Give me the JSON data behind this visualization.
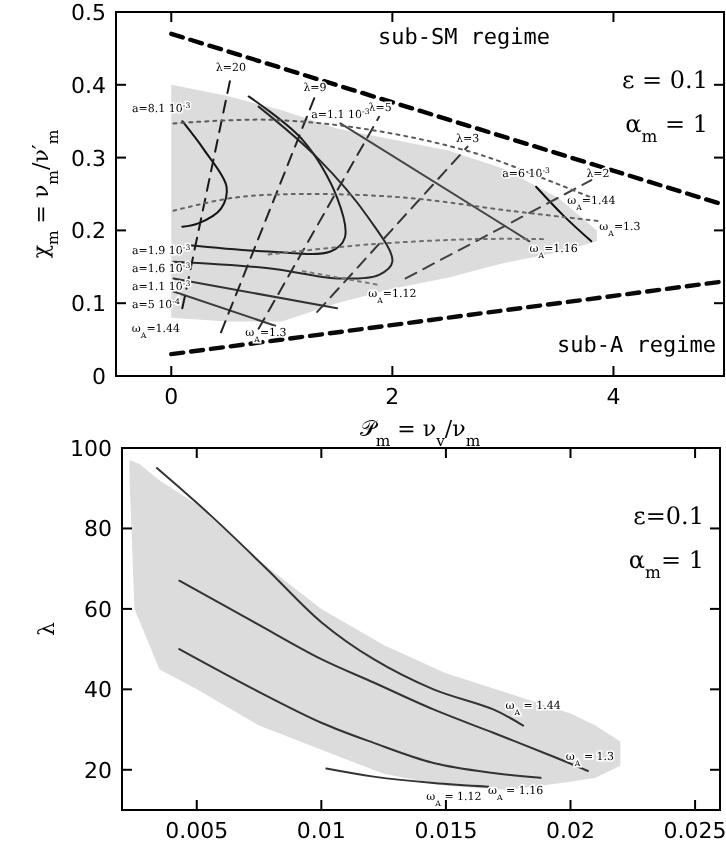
{
  "chart_data": [
    {
      "type": "line",
      "xlabel": "𝒫$_{m}$ = ν$_{v}$/ν$_{m}$",
      "ylabel": "χ$_{m}$ = ν$_{m}$/ν′$_{m}$",
      "xlim": [
        -0.5,
        5
      ],
      "ylim": [
        0,
        0.5
      ],
      "xticks": [
        0,
        2,
        4
      ],
      "yticks": [
        0,
        0.1,
        0.2,
        0.3,
        0.4,
        0.5
      ],
      "series": [
        {
          "type": "area",
          "color": "#dcdcdc",
          "x": [
            0,
            0.5,
            1,
            1.5,
            2,
            2.5,
            3,
            3.5,
            3.85,
            3.85,
            3.5,
            3,
            2.5,
            2,
            1.5,
            1,
            0.5,
            0
          ],
          "values": [
            0.4,
            0.385,
            0.365,
            0.34,
            0.325,
            0.31,
            0.285,
            0.245,
            0.2,
            0.185,
            0.17,
            0.155,
            0.135,
            0.12,
            0.1,
            0.075,
            0.075,
            0.08
          ]
        },
        {
          "line_style": "dashed",
          "color": "#000000",
          "x": [
            0,
            5
          ],
          "values": [
            0.47,
            0.235
          ]
        },
        {
          "line_style": "dashed",
          "color": "#0a0a0a",
          "x": [
            0,
            5
          ],
          "values": [
            0.03,
            0.13
          ]
        },
        {
          "line_style": "solid",
          "color": "#141414",
          "x": [
            0.1,
            0.3,
            0.5,
            0.45,
            0.25,
            0.1
          ],
          "values": [
            0.35,
            0.31,
            0.26,
            0.23,
            0.21,
            0.205
          ]
        },
        {
          "line_style": "solid",
          "color": "#1e1e1e",
          "x": [
            0.7,
            1.19,
            1.5,
            1.57,
            1.44,
            0.88,
            0.14
          ],
          "values": [
            0.384,
            0.324,
            0.245,
            0.19,
            0.171,
            0.171,
            0.18
          ]
        },
        {
          "line_style": "solid",
          "color": "#282828",
          "x": [
            0.79,
            1.32,
            1.78,
            2.0,
            1.88,
            1.5,
            0.88,
            0.02
          ],
          "values": [
            0.37,
            0.3,
            0.218,
            0.157,
            0.139,
            0.134,
            0.148,
            0.157
          ]
        },
        {
          "line_style": "solid",
          "color": "#323232",
          "x": [
            0.02,
            1.5
          ],
          "values": [
            0.134,
            0.093
          ]
        },
        {
          "line_style": "solid",
          "color": "#3c3c3c",
          "x": [
            0.02,
            0.94
          ],
          "values": [
            0.116,
            0.069
          ]
        },
        {
          "line_style": "solid",
          "color": "#464646",
          "x": [
            1.53,
            3.24
          ],
          "values": [
            0.347,
            0.185
          ]
        },
        {
          "line_style": "solid",
          "color": "#0f0f0f",
          "x": [
            3.3,
            3.55,
            3.8
          ],
          "values": [
            0.26,
            0.22,
            0.185
          ]
        },
        {
          "line_style": "dashed",
          "color": "#191919",
          "x": [
            0.1,
            0.54
          ],
          "values": [
            0.093,
            0.412
          ]
        },
        {
          "line_style": "dashed",
          "color": "#232323",
          "x": [
            0.45,
            1.3
          ],
          "values": [
            0.06,
            0.384
          ]
        },
        {
          "line_style": "dashed",
          "color": "#2d2d2d",
          "x": [
            0.79,
            1.88
          ],
          "values": [
            0.065,
            0.356
          ]
        },
        {
          "line_style": "dashed",
          "color": "#373737",
          "x": [
            1.32,
            2.68
          ],
          "values": [
            0.088,
            0.315
          ]
        },
        {
          "line_style": "dashed",
          "color": "#414141",
          "x": [
            2.12,
            3.8
          ],
          "values": [
            0.134,
            0.269
          ]
        },
        {
          "line_style": "dotted",
          "color": "#5a5a5a",
          "x": [
            0.02,
            0.88,
            1.81,
            2.75,
            3.49,
            3.8
          ],
          "values": [
            0.347,
            0.352,
            0.338,
            0.306,
            0.264,
            0.245
          ]
        },
        {
          "line_style": "dotted",
          "color": "#646464",
          "x": [
            0.02,
            0.57,
            1.19,
            2.12,
            3.06,
            3.86
          ],
          "values": [
            0.227,
            0.245,
            0.25,
            0.245,
            0.227,
            0.213
          ]
        },
        {
          "line_style": "dotted",
          "color": "#6e6e6e",
          "x": [
            0.88,
            1.81,
            2.75,
            3.37
          ],
          "values": [
            0.167,
            0.181,
            0.188,
            0.188
          ]
        },
        {
          "line_style": "dotted",
          "color": "#787878",
          "x": [
            1.19,
            1.88
          ],
          "values": [
            0.144,
            0.125
          ]
        }
      ],
      "annotations": [
        "ε = 0.1",
        "α$_{m}$ = 1",
        "sub-SM regime",
        "sub-A regime",
        "a=8.1 10$^{-3}$",
        "a=1.9 10$^{-3}$",
        "a=1.6 10$^{-3}$",
        "a=1.1 10$^{-3}$",
        "a=5 10$^{-4}$",
        "ω$_{A}$=1.3",
        "ω$_{A}$=1.3",
        "ω$_{A}$=1.44",
        {
          "text": "λ=20",
          "x": 0.54,
          "y": 0.419
        },
        {
          "text": "λ=9",
          "x": 1.3,
          "y": 0.392
        },
        {
          "text": "λ=5",
          "x": 1.89,
          "y": 0.364
        },
        {
          "text": "λ=3",
          "x": 2.68,
          "y": 0.321
        },
        {
          "text": "λ=2",
          "x": 3.86,
          "y": 0.273
        },
        {
          "text": "a=1.1 10$^{-3}$",
          "x": 1.53,
          "y": 0.355
        },
        {
          "text": "a=6 10$^{-3}$",
          "x": 3.21,
          "y": 0.273
        },
        {
          "text": "ω$_{A}$=1.44",
          "x": 3.8,
          "y": 0.236
        },
        {
          "text": "ω$_{A}$=1.16",
          "x": 3.46,
          "y": 0.171
        },
        {
          "text": "ω$_{A}$=1.12",
          "x": 2.0,
          "y": 0.108
        }
      ]
    },
    {
      "type": "line",
      "ylabel": "λ",
      "xlim": [
        0.002,
        0.026
      ],
      "ylim": [
        10,
        100
      ],
      "xticks": [
        0.005,
        0.01,
        0.015,
        0.02,
        0.025
      ],
      "yticks": [
        20,
        40,
        60,
        80,
        100
      ],
      "series": [
        {
          "type": "area",
          "color": "#dcdcdc",
          "x": [
            0.0023,
            0.0027,
            0.0035,
            0.005,
            0.0075,
            0.01,
            0.0125,
            0.015,
            0.0175,
            0.02,
            0.021,
            0.022,
            0.022,
            0.021,
            0.02,
            0.0175,
            0.015,
            0.0125,
            0.01,
            0.0075,
            0.005,
            0.0035,
            0.0025,
            0.0023
          ],
          "values": [
            97,
            96,
            92,
            86,
            72,
            60,
            51,
            44,
            39,
            34,
            31,
            27,
            21,
            18,
            17,
            15,
            16,
            19,
            25,
            31,
            40,
            45,
            60,
            93
          ]
        },
        {
          "line_style": "solid",
          "color": "#333333",
          "x": [
            0.0034,
            0.0056,
            0.0078,
            0.01,
            0.0121,
            0.0145,
            0.0169,
            0.0181
          ],
          "values": [
            95,
            83,
            70,
            56.7,
            47.5,
            40,
            35,
            31
          ]
        },
        {
          "line_style": "solid",
          "color": "#333333",
          "x": [
            0.0043,
            0.0073,
            0.01,
            0.0121,
            0.0145,
            0.0169,
            0.0193,
            0.0207
          ],
          "values": [
            67,
            56.7,
            47.5,
            41.7,
            35,
            29.2,
            23.3,
            19.7
          ]
        },
        {
          "line_style": "solid",
          "color": "#333333",
          "x": [
            0.0043,
            0.0073,
            0.01,
            0.0121,
            0.0145,
            0.0169,
            0.0188
          ],
          "values": [
            50,
            40,
            31.7,
            26.7,
            21.7,
            19.2,
            18
          ]
        },
        {
          "line_style": "solid",
          "color": "#333333",
          "x": [
            0.0102,
            0.0121,
            0.0145,
            0.0167
          ],
          "values": [
            20.3,
            18.3,
            16.7,
            15.8
          ]
        }
      ],
      "annotations": [
        "ε=0.1",
        "α$_{m}$= 1",
        "ω$_{A}$ = 1.3",
        "ω$_{A}$ = 1.12",
        {
          "text": "ω$_{A}$ = 1.44",
          "x": 0.0185,
          "y": 35
        },
        {
          "text": "ω$_{A}$ = 1.16",
          "x": 0.0178,
          "y": 14
        }
      ]
    }
  ]
}
